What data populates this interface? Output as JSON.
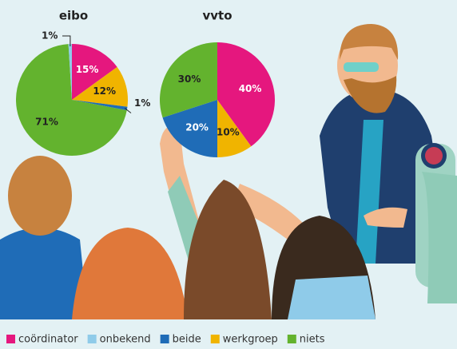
{
  "chart_data": [
    {
      "type": "pie",
      "title": "eibo",
      "values": [
        15,
        1,
        1,
        12,
        71
      ],
      "value_labels": [
        "15%",
        "1%",
        "1%",
        "12%",
        "71%"
      ]
    },
    {
      "type": "pie",
      "title": "vvto",
      "values": [
        40,
        null,
        20,
        10,
        30
      ],
      "value_labels": [
        "40%",
        null,
        "20%",
        "10%",
        "30%"
      ]
    }
  ],
  "legend": {
    "labels": [
      "coördinator",
      "onbekend",
      "beide",
      "werkgroep",
      "niets"
    ],
    "colors": [
      "#e5177e",
      "#8fcbe9",
      "#1f6cb7",
      "#f0b400",
      "#63b32e"
    ]
  }
}
